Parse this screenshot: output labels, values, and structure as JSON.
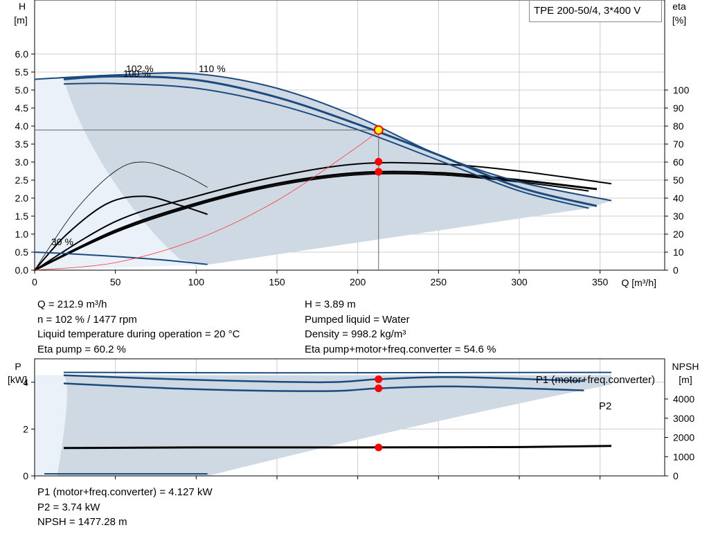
{
  "title": "TPE 200-50/4, 3*400 V",
  "chart_data": [
    {
      "type": "line",
      "id": "head-eta",
      "ylabel_left": [
        "H",
        "[m]"
      ],
      "ylabel_right": [
        "eta",
        "[%]"
      ],
      "xlabel": "Q [m³/h]",
      "x_ticks": [
        0,
        50,
        100,
        150,
        200,
        250,
        300,
        350
      ],
      "x_tick_labels": [
        "0",
        "50",
        "100",
        "150",
        "200",
        "250",
        "300",
        "350"
      ],
      "xlim": [
        0,
        390
      ],
      "y_ticks": [
        0.0,
        0.5,
        1.0,
        1.5,
        2.0,
        2.5,
        3.0,
        3.5,
        4.0,
        4.5,
        5.0,
        5.5,
        6.0
      ],
      "y_tick_labels": [
        "0.0",
        "0.5",
        "1.0",
        "1.5",
        "2.0",
        "2.5",
        "3.0",
        "3.5",
        "4.0",
        "4.5",
        "5.0",
        "5.5",
        "6.0"
      ],
      "ylim": [
        0,
        7.5
      ],
      "y2_ticks": [
        0,
        10,
        20,
        30,
        40,
        50,
        60,
        70,
        80,
        90,
        100
      ],
      "y2_tick_labels": [
        "0",
        "10",
        "20",
        "30",
        "40",
        "50",
        "60",
        "70",
        "80",
        "90",
        "100"
      ],
      "curve_labels": [
        "102 %",
        "100 %",
        "110 %",
        "30 %"
      ],
      "series": [
        {
          "label": "110 %",
          "x": [
            0,
            50,
            100,
            150,
            200,
            250,
            300,
            357
          ],
          "y": [
            5.3,
            5.42,
            5.45,
            5.05,
            4.25,
            3.2,
            2.45,
            1.93
          ]
        },
        {
          "label": "102 %",
          "x": [
            18,
            50,
            100,
            150,
            200,
            250,
            300,
            348
          ],
          "y": [
            5.3,
            5.38,
            5.28,
            4.8,
            4.05,
            3.2,
            2.3,
            1.78
          ]
        },
        {
          "label": "100 %",
          "x": [
            18,
            50,
            100,
            150,
            200,
            250,
            300,
            343
          ],
          "y": [
            5.17,
            5.18,
            5.05,
            4.6,
            3.9,
            3.05,
            2.2,
            1.72
          ]
        },
        {
          "label": "30 %",
          "x": [
            0,
            20,
            50,
            80,
            107
          ],
          "y": [
            0.5,
            0.46,
            0.38,
            0.28,
            0.16
          ]
        }
      ],
      "eta_series": [
        {
          "x": [
            0,
            50,
            100,
            150,
            200,
            250,
            300,
            357
          ],
          "y": [
            0,
            27,
            41,
            52,
            59,
            59,
            55,
            48
          ]
        },
        {
          "x": [
            0,
            50,
            100,
            150,
            200,
            250,
            300,
            348
          ],
          "y": [
            0,
            22,
            37,
            48,
            54,
            54,
            50,
            45
          ]
        },
        {
          "x": [
            0,
            50,
            100,
            150,
            200,
            250,
            300,
            343
          ],
          "y": [
            0,
            21,
            36,
            47,
            53,
            53,
            49,
            44
          ]
        },
        {
          "x": [
            0,
            20,
            45,
            68,
            90,
            107
          ],
          "y": [
            0,
            20,
            37,
            41,
            36,
            31
          ]
        },
        {
          "x": [
            0,
            25,
            50,
            68,
            90,
            107
          ],
          "y": [
            0,
            33,
            55,
            60,
            54,
            46
          ]
        }
      ],
      "system_curve": {
        "x": [
          0,
          50,
          100,
          150,
          200,
          212.9
        ],
        "y": [
          0,
          0.21,
          0.85,
          1.93,
          3.43,
          3.89
        ]
      },
      "duty_point": {
        "q": 212.9,
        "h": 3.89,
        "eta_points": [
          60.2,
          54.6
        ]
      }
    },
    {
      "type": "line",
      "id": "power-npsh",
      "ylabel_left": [
        "P",
        "[kW]"
      ],
      "ylabel_right": [
        "NPSH",
        "[m]"
      ],
      "xlim": [
        0,
        390
      ],
      "y_ticks": [
        0,
        2,
        4
      ],
      "y_tick_labels": [
        "0",
        "2",
        "4"
      ],
      "ylim": [
        0,
        5.0
      ],
      "y2_ticks": [
        0,
        1000,
        2000,
        3000,
        4000
      ],
      "y2_tick_labels": [
        "0",
        "1000",
        "2000",
        "3000",
        "4000"
      ],
      "series": [
        {
          "label": "P1 (motor+freq.converter)",
          "x": [
            18,
            100,
            180,
            213,
            260,
            340
          ],
          "y": [
            4.3,
            4.1,
            4.0,
            4.13,
            4.22,
            4.05
          ]
        },
        {
          "label": "P2",
          "x": [
            18,
            100,
            180,
            213,
            260,
            340
          ],
          "y": [
            3.95,
            3.7,
            3.62,
            3.74,
            3.82,
            3.65
          ]
        }
      ],
      "npsh_series": {
        "x": [
          18,
          100,
          200,
          300,
          357
        ],
        "y": [
          1450,
          1480,
          1480,
          1500,
          1560
        ]
      },
      "duty_point": {
        "q": 212.9,
        "p1": 4.127,
        "p2": 3.74,
        "npsh": 1477.28
      }
    }
  ],
  "labels": {
    "p1_curve": "P1 (motor+freq.converter)",
    "p2_curve": "P2"
  },
  "info_top_left": [
    "Q = 212.9 m³/h",
    "n = 102 % / 1477 rpm",
    "Liquid temperature during operation = 20 °C",
    "Eta pump = 60.2 %"
  ],
  "info_top_right": [
    "H = 3.89 m",
    "Pumped liquid = Water",
    "Density = 998.2 kg/m³",
    "Eta pump+motor+freq.converter = 54.6 %"
  ],
  "info_bottom": [
    "P1 (motor+freq.converter) = 4.127 kW",
    "P2 = 3.74 kW",
    "NPSH = 1477.28 m"
  ],
  "colors": {
    "envelope": "#cfd9e3",
    "envelope_low": "#eaf1f8",
    "curve_blue": "#1a4a7e",
    "curve_black": "#000000",
    "system_curve": "#ff3333",
    "duty_point": "#ff0000",
    "duty_marker_fill": "#ffff00",
    "grid": "#cccccc"
  }
}
